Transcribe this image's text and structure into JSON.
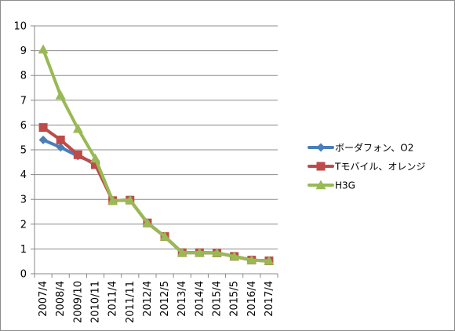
{
  "chart_data": {
    "type": "line",
    "title": "",
    "xlabel": "",
    "ylabel": "",
    "ylim": [
      0,
      10
    ],
    "yticks": [
      0,
      1,
      2,
      3,
      4,
      5,
      6,
      7,
      8,
      9,
      10
    ],
    "grid": "horizontal",
    "legend_position": "right",
    "categories": [
      "2007/4",
      "2008/4",
      "2009/10",
      "2010/11",
      "2011/4",
      "2011/11",
      "2012/4",
      "2012/5",
      "2013/4",
      "2014/4",
      "2015/4",
      "2015/5",
      "2016/4",
      "2017/4"
    ],
    "series": [
      {
        "name": "ボーダフォン、O2",
        "color": "#4a7ebb",
        "marker": "diamond",
        "values": [
          5.4,
          5.1,
          4.75,
          4.45,
          2.95,
          2.97,
          2.05,
          1.5,
          0.85,
          0.85,
          0.84,
          0.7,
          0.55,
          0.52
        ]
      },
      {
        "name": "Tモバイル、オレンジ",
        "color": "#be4b48",
        "marker": "square",
        "values": [
          5.9,
          5.4,
          4.8,
          4.4,
          2.95,
          2.97,
          2.05,
          1.5,
          0.85,
          0.85,
          0.84,
          0.7,
          0.55,
          0.52
        ]
      },
      {
        "name": "H3G",
        "color": "#98b954",
        "marker": "triangle",
        "values": [
          9.05,
          7.2,
          5.85,
          4.65,
          2.95,
          2.97,
          2.05,
          1.5,
          0.85,
          0.85,
          0.84,
          0.7,
          0.55,
          0.52
        ]
      }
    ]
  }
}
